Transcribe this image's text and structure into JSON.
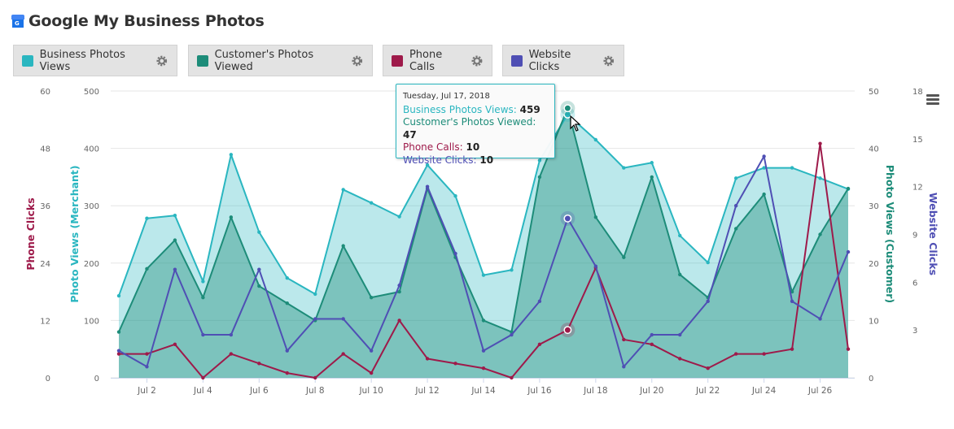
{
  "header": {
    "title": "Google My Business Photos",
    "logo_icon": "google-my-business-icon"
  },
  "legend": [
    {
      "label": "Business Photos Views",
      "color": "#2ab6c0"
    },
    {
      "label": "Customer's Photos Viewed",
      "color": "#1d8c79"
    },
    {
      "label": "Phone Calls",
      "color": "#9e1a4a"
    },
    {
      "label": "Website Clicks",
      "color": "#4f4fb4"
    }
  ],
  "tooltip": {
    "date": "Tuesday, Jul 17, 2018",
    "rows": [
      {
        "label": "Business Photos Views",
        "value": "459",
        "color": "#2ab6c0"
      },
      {
        "label": "Customer's Photos Viewed",
        "value": "47",
        "color": "#1d8c79"
      },
      {
        "label": "Phone Calls",
        "value": "10",
        "color": "#9e1a4a"
      },
      {
        "label": "Website Clicks",
        "value": "10",
        "color": "#4f4fb4"
      }
    ]
  },
  "chart_data": {
    "type": "area",
    "hovered_index": 16,
    "x_tick_labels": [
      "Jul 2",
      "Jul 4",
      "Jul 6",
      "Jul 8",
      "Jul 10",
      "Jul 12",
      "Jul 14",
      "Jul 16",
      "Jul 18",
      "Jul 20",
      "Jul 22",
      "Jul 24",
      "Jul 26"
    ],
    "x_tick_indices": [
      1,
      3,
      5,
      7,
      9,
      11,
      13,
      15,
      17,
      19,
      21,
      23,
      25
    ],
    "axes": {
      "phone": {
        "title": "Phone Clicks",
        "side": "left-outer",
        "range": [
          0,
          60
        ],
        "ticks": [
          "0",
          "12",
          "24",
          "36",
          "48",
          "60"
        ]
      },
      "merchant": {
        "title": "Photo Views (Merchant)",
        "side": "left-inner",
        "range": [
          0,
          500
        ],
        "ticks": [
          "0",
          "100",
          "200",
          "300",
          "400",
          "500"
        ]
      },
      "customer": {
        "title": "Photo Views (Customer)",
        "side": "right-inner",
        "range": [
          0,
          50
        ],
        "ticks": [
          "0",
          "10",
          "20",
          "30",
          "40",
          "50"
        ]
      },
      "website": {
        "title": "Website Clicks",
        "side": "right-outer",
        "range": [
          0,
          18
        ],
        "ticks": [
          "3",
          "6",
          "9",
          "12",
          "15",
          "18"
        ]
      }
    },
    "series": [
      {
        "name": "Business Photos Views",
        "axis": "merchant",
        "kind": "area",
        "color": "#2ab6c0",
        "values": [
          143,
          278,
          283,
          168,
          389,
          254,
          174,
          146,
          328,
          305,
          281,
          371,
          317,
          179,
          188,
          379,
          459,
          415,
          366,
          375,
          248,
          201,
          348,
          366,
          366,
          348,
          329
        ]
      },
      {
        "name": "Customer's Photos Viewed",
        "axis": "customer",
        "kind": "area",
        "color": "#1d8c79",
        "values": [
          8,
          19,
          24,
          14,
          28,
          16,
          13,
          10,
          23,
          14,
          15,
          33,
          21,
          10,
          8,
          35,
          47,
          28,
          21,
          35,
          18,
          14,
          26,
          32,
          15,
          25,
          33
        ]
      },
      {
        "name": "Phone Calls",
        "axis": "phone",
        "kind": "line",
        "color": "#9e1a4a",
        "values": [
          5,
          5,
          7,
          0,
          5,
          3,
          1,
          0,
          5,
          1,
          12,
          4,
          3,
          2,
          0,
          7,
          10,
          23,
          8,
          7,
          4,
          2,
          5,
          5,
          6,
          49,
          6
        ]
      },
      {
        "name": "Website Clicks",
        "axis": "website",
        "kind": "line",
        "color": "#4f4fb4",
        "values": [
          1.7,
          0.7,
          6.8,
          2.7,
          2.7,
          6.8,
          1.7,
          3.7,
          3.7,
          1.7,
          5.8,
          12,
          7.8,
          1.7,
          2.7,
          4.8,
          10,
          7,
          0.7,
          2.7,
          2.7,
          4.8,
          10.8,
          13.9,
          4.8,
          3.7,
          7.9
        ]
      }
    ]
  }
}
